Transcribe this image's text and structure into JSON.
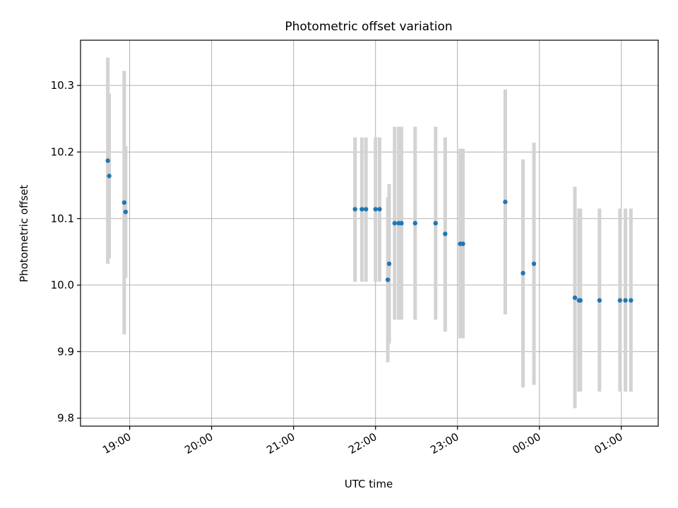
{
  "chart_data": {
    "type": "scatter",
    "title": "Photometric offset variation",
    "xlabel": "UTC time",
    "ylabel": "Photometric offset",
    "x_axis_kind": "time",
    "xlim": [
      "18:24",
      "01:27"
    ],
    "ylim": [
      9.788,
      10.368
    ],
    "x_ticks": [
      "19:00",
      "20:00",
      "21:00",
      "22:00",
      "23:00",
      "00:00",
      "01:00"
    ],
    "y_ticks": [
      "9.8",
      "9.9",
      "10.0",
      "10.1",
      "10.2",
      "10.3"
    ],
    "grid": true,
    "colors": {
      "point": "#1f77b4",
      "errorbar": "#d3d3d3",
      "grid": "#b0b0b0"
    },
    "points": [
      {
        "x": "18:44",
        "y": 10.187,
        "err_low": 10.032,
        "err_high": 10.342
      },
      {
        "x": "18:45",
        "y": 10.164,
        "err_low": 10.04,
        "err_high": 10.288
      },
      {
        "x": "18:56",
        "y": 10.124,
        "err_low": 9.926,
        "err_high": 10.322
      },
      {
        "x": "18:57",
        "y": 10.11,
        "err_low": 10.011,
        "err_high": 10.209
      },
      {
        "x": "21:45",
        "y": 10.114,
        "err_low": 10.005,
        "err_high": 10.222
      },
      {
        "x": "21:50",
        "y": 10.114,
        "err_low": 10.005,
        "err_high": 10.222
      },
      {
        "x": "21:53",
        "y": 10.114,
        "err_low": 10.005,
        "err_high": 10.222
      },
      {
        "x": "22:00",
        "y": 10.114,
        "err_low": 10.005,
        "err_high": 10.222
      },
      {
        "x": "22:03",
        "y": 10.114,
        "err_low": 10.005,
        "err_high": 10.222
      },
      {
        "x": "22:09",
        "y": 10.008,
        "err_low": 9.884,
        "err_high": 10.132
      },
      {
        "x": "22:10",
        "y": 10.032,
        "err_low": 9.912,
        "err_high": 10.152
      },
      {
        "x": "22:14",
        "y": 10.093,
        "err_low": 9.948,
        "err_high": 10.238
      },
      {
        "x": "22:17",
        "y": 10.093,
        "err_low": 9.948,
        "err_high": 10.238
      },
      {
        "x": "22:19",
        "y": 10.093,
        "err_low": 9.948,
        "err_high": 10.238
      },
      {
        "x": "22:29",
        "y": 10.093,
        "err_low": 9.948,
        "err_high": 10.238
      },
      {
        "x": "22:44",
        "y": 10.093,
        "err_low": 9.948,
        "err_high": 10.238
      },
      {
        "x": "22:51",
        "y": 10.077,
        "err_low": 9.93,
        "err_high": 10.222
      },
      {
        "x": "23:02",
        "y": 10.062,
        "err_low": 9.92,
        "err_high": 10.205
      },
      {
        "x": "23:04",
        "y": 10.062,
        "err_low": 9.92,
        "err_high": 10.205
      },
      {
        "x": "23:35",
        "y": 10.125,
        "err_low": 9.956,
        "err_high": 10.294
      },
      {
        "x": "23:48",
        "y": 10.018,
        "err_low": 9.846,
        "err_high": 10.189
      },
      {
        "x": "23:56",
        "y": 10.032,
        "err_low": 9.85,
        "err_high": 10.214
      },
      {
        "x": "00:26",
        "y": 9.981,
        "err_low": 9.815,
        "err_high": 10.148
      },
      {
        "x": "00:29",
        "y": 9.977,
        "err_low": 9.84,
        "err_high": 10.115
      },
      {
        "x": "00:30",
        "y": 9.977,
        "err_low": 9.84,
        "err_high": 10.115
      },
      {
        "x": "00:44",
        "y": 9.977,
        "err_low": 9.84,
        "err_high": 10.115
      },
      {
        "x": "00:59",
        "y": 9.977,
        "err_low": 9.84,
        "err_high": 10.115
      },
      {
        "x": "01:03",
        "y": 9.977,
        "err_low": 9.84,
        "err_high": 10.115
      },
      {
        "x": "01:07",
        "y": 9.977,
        "err_low": 9.84,
        "err_high": 10.115
      }
    ]
  }
}
